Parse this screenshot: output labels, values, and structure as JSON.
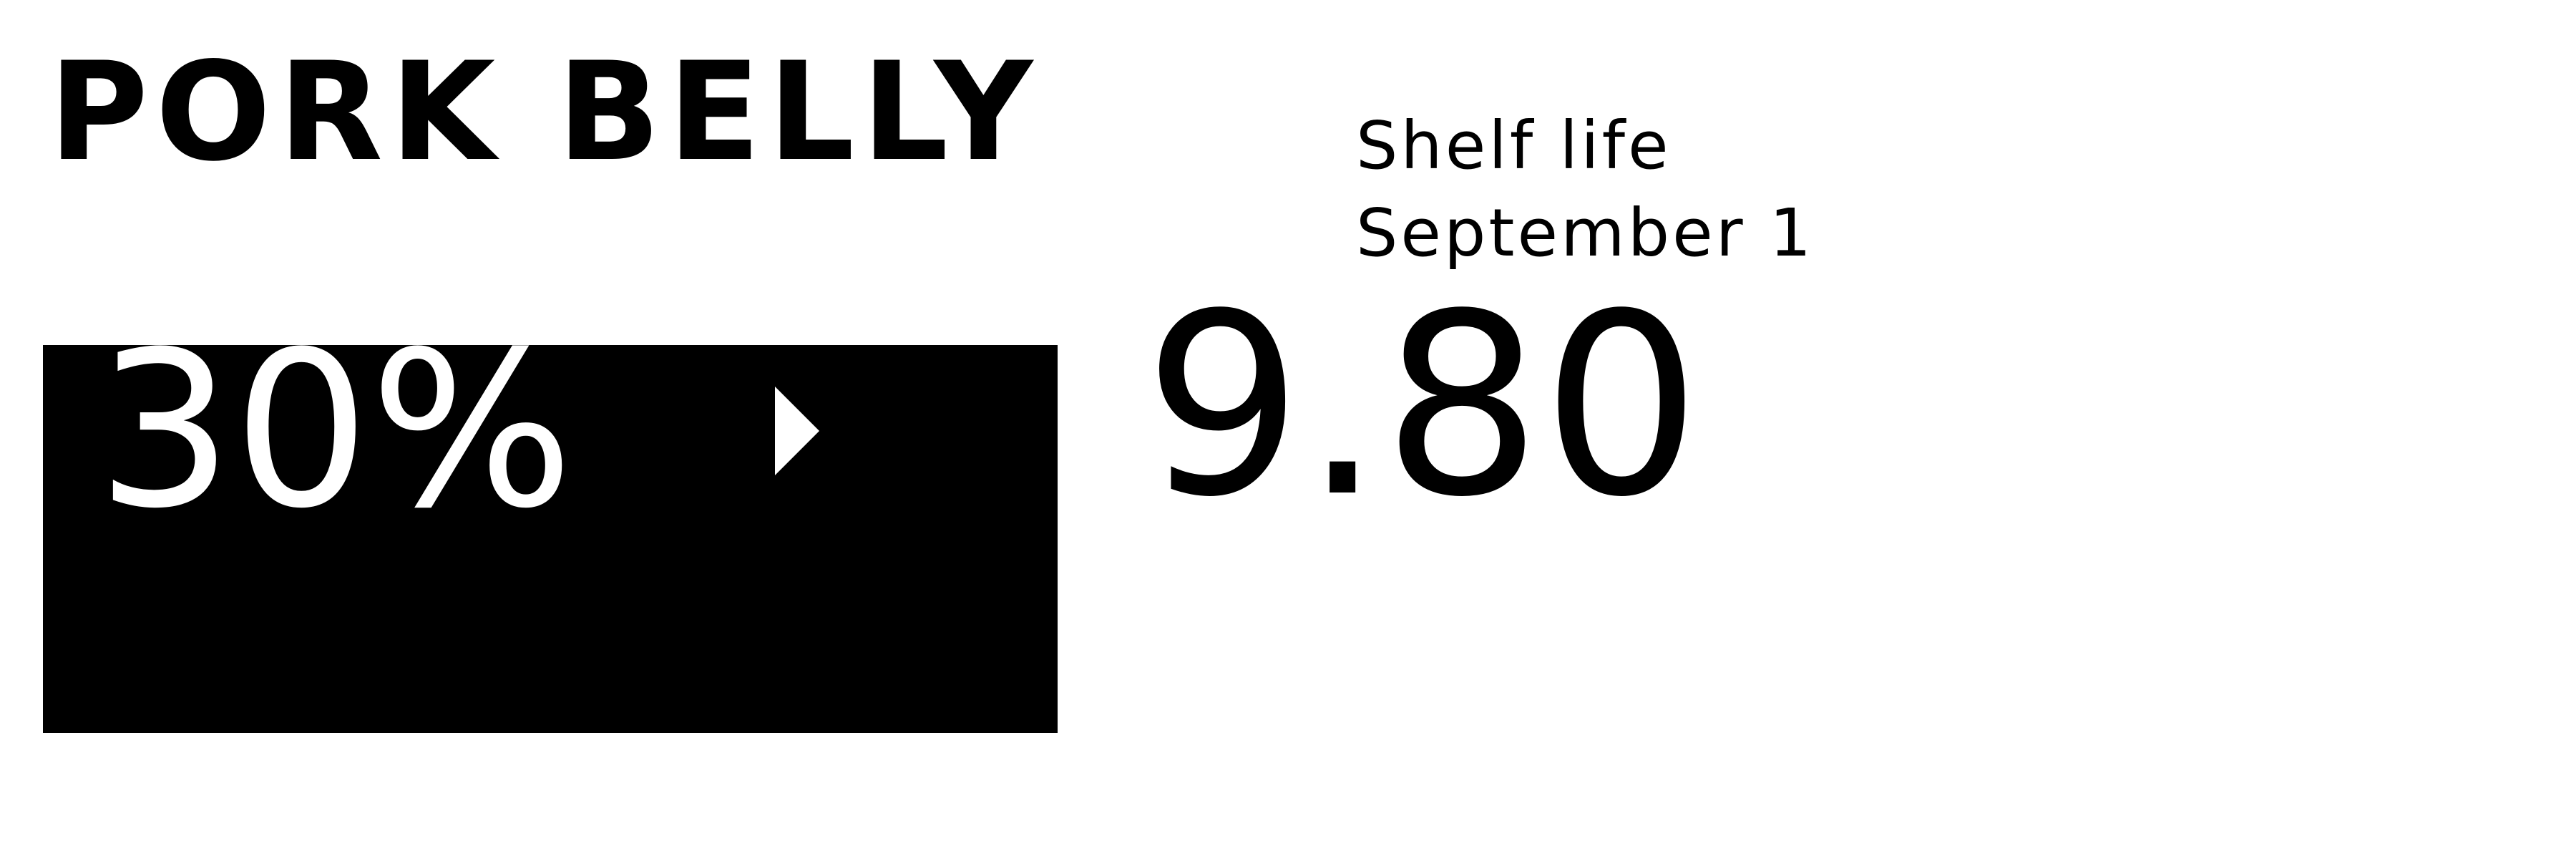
{
  "label": {
    "product_name": "PORK BELLY",
    "shelf_life_label": "Shelf life",
    "shelf_life_date": "September 1",
    "discount": "30%",
    "price": "9.80",
    "icons": {
      "discount_arrow": "triangle-right-icon"
    },
    "colors": {
      "foreground": "#000000",
      "background": "#ffffff",
      "discount_text": "#ffffff"
    }
  }
}
